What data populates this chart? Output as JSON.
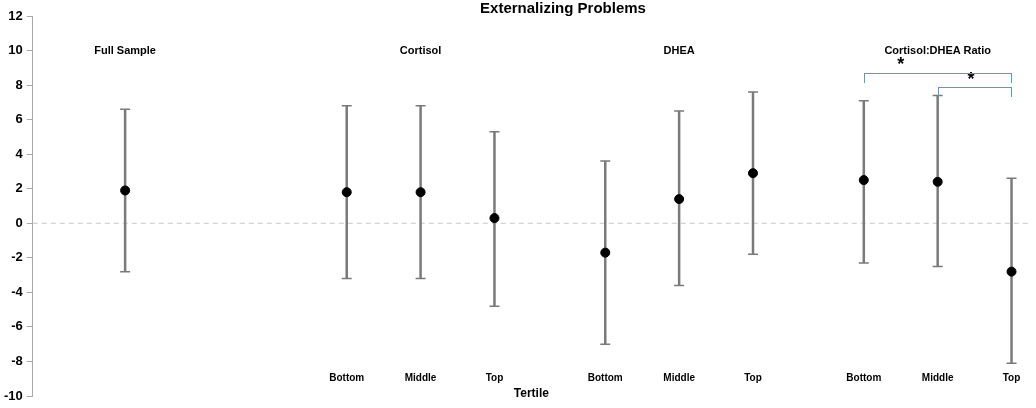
{
  "chart_data": {
    "type": "scatter",
    "title": "Externalizing Problems",
    "xlabel": "Tertile",
    "categories": [
      null,
      null,
      null,
      null,
      null,
      null,
      null,
      null,
      "Bottom",
      null,
      "Middle",
      null,
      "Top",
      null,
      null,
      "Bottom",
      null,
      "Middle",
      null,
      "Top",
      null,
      null,
      "Bottom",
      null,
      "Middle",
      null,
      "Top"
    ],
    "values": [
      null,
      null,
      1.9,
      null,
      null,
      null,
      null,
      null,
      1.8,
      null,
      1.8,
      null,
      0.3,
      null,
      null,
      -1.7,
      null,
      1.4,
      null,
      2.9,
      null,
      null,
      2.5,
      null,
      2.4,
      null,
      -2.8
    ],
    "errors": [
      null,
      null,
      [
        -2.8,
        6.6
      ],
      null,
      null,
      null,
      null,
      null,
      [
        -3.2,
        6.8
      ],
      null,
      [
        -3.2,
        6.8
      ],
      null,
      [
        -4.8,
        5.3
      ],
      null,
      null,
      [
        -7.0,
        3.6
      ],
      null,
      [
        -3.6,
        6.5
      ],
      null,
      [
        -1.8,
        7.6
      ],
      null,
      null,
      [
        -2.3,
        7.1
      ],
      null,
      [
        -2.5,
        7.4
      ],
      null,
      [
        -8.1,
        2.6
      ]
    ],
    "color": "#000000",
    "marker": "circle",
    "grid": false,
    "legend": false,
    "ylim": [
      -10,
      12
    ],
    "yticks": [
      -10,
      -8,
      -6,
      -4,
      -2,
      0,
      2,
      4,
      6,
      8,
      10,
      12
    ],
    "ref_lines": [
      {
        "axis": "y",
        "value": 0,
        "color": "#c8c8c8",
        "line_style": "dashed"
      }
    ],
    "annotations": [
      "Full Sample",
      "Cortisol",
      "DHEA",
      "Cortisol:DHEA Ratio",
      "*",
      "*"
    ]
  }
}
